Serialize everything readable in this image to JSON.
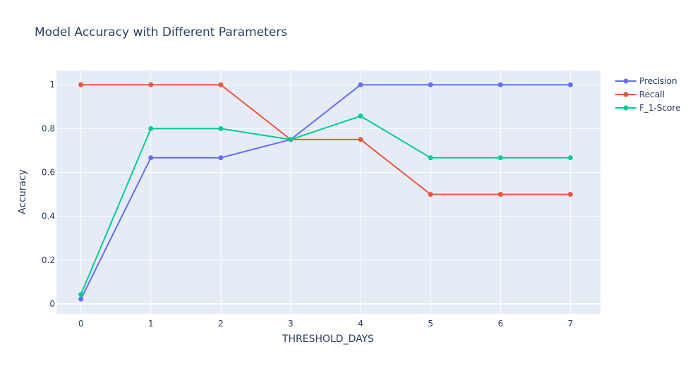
{
  "chart_data": {
    "type": "line",
    "title": "Model Accuracy with Different Parameters",
    "xlabel": "THRESHOLD_DAYS",
    "ylabel": "Accuracy",
    "x": [
      0,
      1,
      2,
      3,
      4,
      5,
      6,
      7
    ],
    "xlim": [
      -0.35,
      7.43
    ],
    "ylim": [
      -0.045,
      1.065
    ],
    "xticks": [
      "0",
      "1",
      "2",
      "3",
      "4",
      "5",
      "6",
      "7"
    ],
    "yticks": [
      0,
      0.2,
      0.4,
      0.6,
      0.8,
      1
    ],
    "ytick_labels": [
      "0",
      "0.2",
      "0.4",
      "0.6",
      "0.8",
      "1"
    ],
    "grid": true,
    "legend_position": "top-right",
    "series": [
      {
        "name": "Precision",
        "color": "#636efa",
        "values": [
          0.022,
          0.667,
          0.667,
          0.75,
          1,
          1,
          1,
          1
        ]
      },
      {
        "name": "Recall",
        "color": "#ef553b",
        "values": [
          1,
          1,
          1,
          0.75,
          0.75,
          0.5,
          0.5,
          0.5
        ]
      },
      {
        "name": "F_1-Score",
        "color": "#00cc96",
        "values": [
          0.043,
          0.8,
          0.8,
          0.75,
          0.857,
          0.667,
          0.667,
          0.667
        ]
      }
    ]
  },
  "style": {
    "plot_background": "#e5ecf6",
    "grid_color": "#ffffff",
    "text_color": "#2a3f5f"
  }
}
